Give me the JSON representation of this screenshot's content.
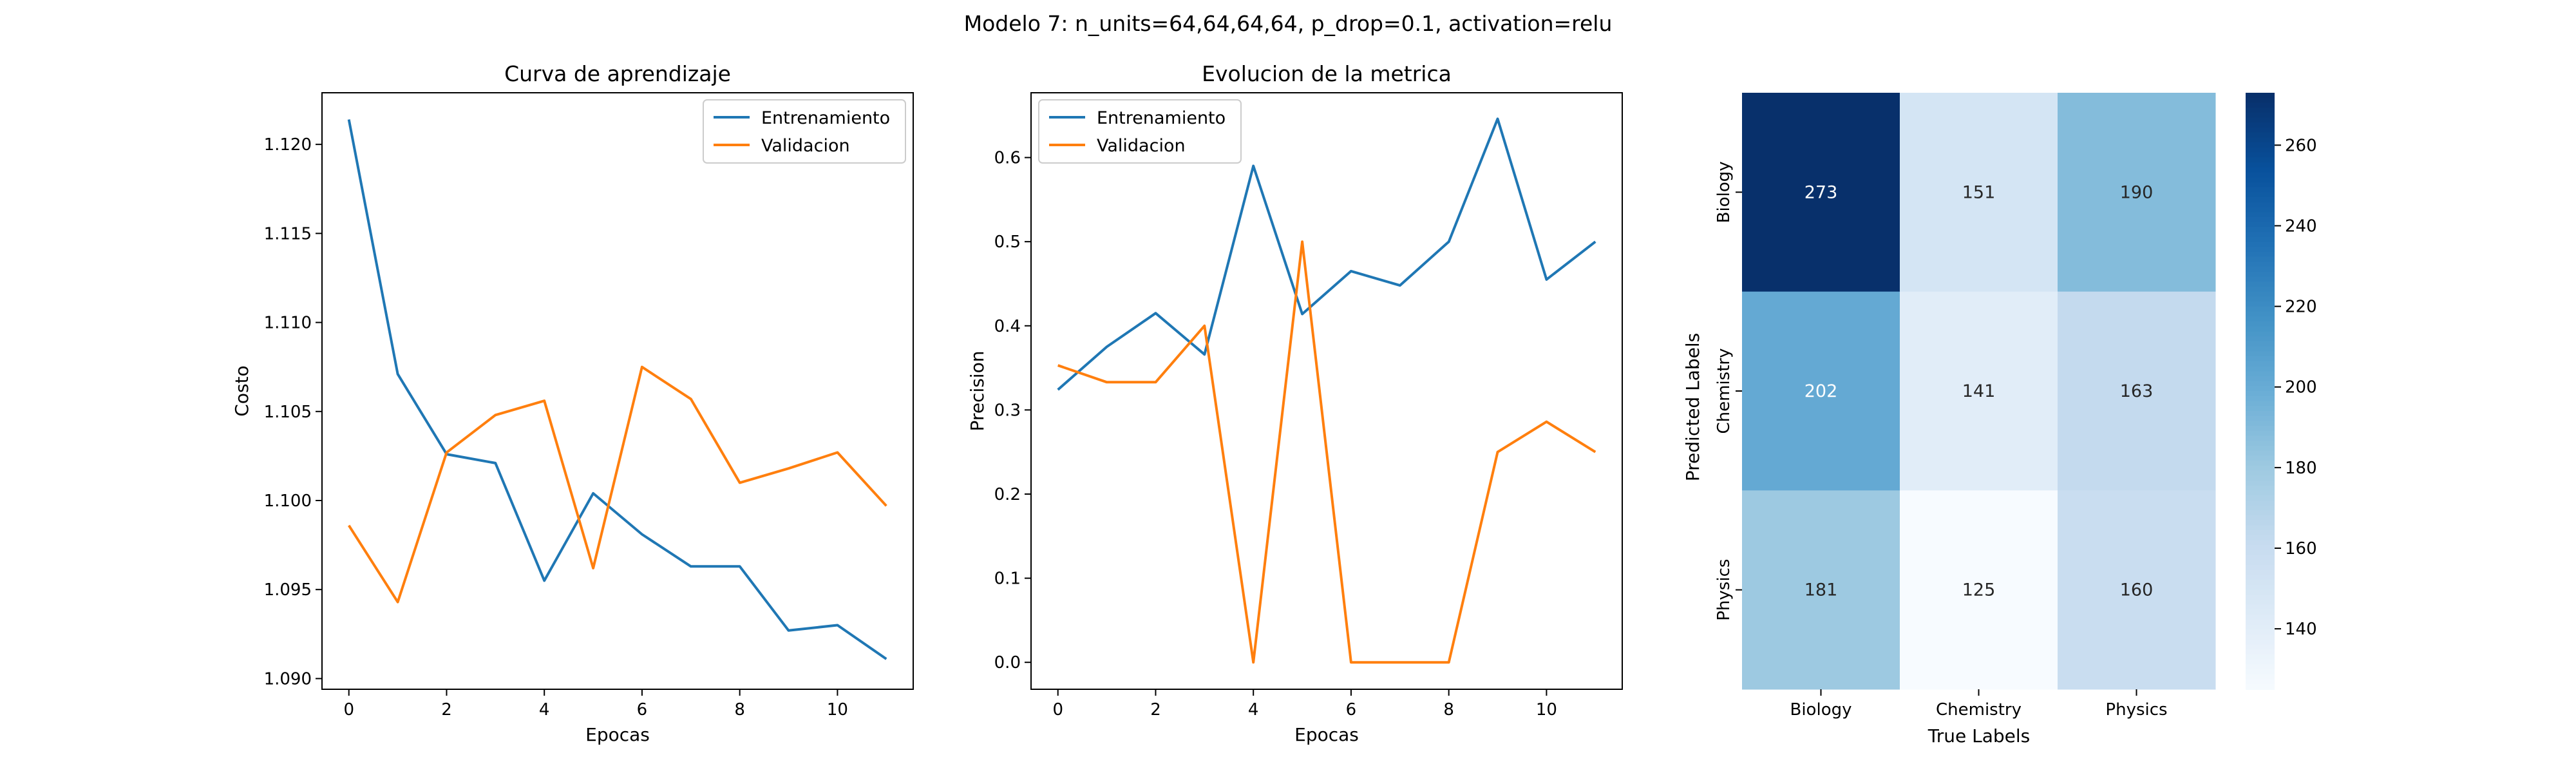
{
  "figure": {
    "suptitle": "Modelo 7: n_units=64,64,64,64, p_drop=0.1, activation=relu"
  },
  "chart_data": [
    {
      "type": "line",
      "title": "Curva de aprendizaje",
      "xlabel": "Epocas",
      "ylabel": "Costo",
      "x": [
        0,
        1,
        2,
        3,
        4,
        5,
        6,
        7,
        8,
        9,
        10,
        11
      ],
      "xticks": [
        "0",
        "2",
        "4",
        "6",
        "8",
        "10"
      ],
      "yticks": [
        "1.090",
        "1.095",
        "1.100",
        "1.105",
        "1.110",
        "1.115",
        "1.120"
      ],
      "xlim": [
        -0.55,
        11.55
      ],
      "ylim": [
        1.0894,
        1.1229
      ],
      "grid": false,
      "legend_position": "upper right",
      "series": [
        {
          "name": "Entrenamiento",
          "color": "#1f77b4",
          "values": [
            1.1214,
            1.1071,
            1.1026,
            1.1021,
            1.0955,
            1.1004,
            1.0981,
            1.0963,
            1.0963,
            1.0927,
            1.093,
            1.0911
          ]
        },
        {
          "name": "Validacion",
          "color": "#ff7f0e",
          "values": [
            1.0986,
            1.0943,
            1.1027,
            1.1048,
            1.1056,
            1.0962,
            1.1075,
            1.1057,
            1.101,
            1.1018,
            1.1027,
            1.0997
          ]
        }
      ]
    },
    {
      "type": "line",
      "title": "Evolucion de la metrica",
      "xlabel": "Epocas",
      "ylabel": "Precision",
      "x": [
        0,
        1,
        2,
        3,
        4,
        5,
        6,
        7,
        8,
        9,
        10,
        11
      ],
      "xticks": [
        "0",
        "2",
        "4",
        "6",
        "8",
        "10"
      ],
      "yticks": [
        "0.0",
        "0.1",
        "0.2",
        "0.3",
        "0.4",
        "0.5",
        "0.6"
      ],
      "xlim": [
        -0.55,
        11.55
      ],
      "ylim": [
        -0.032,
        0.677
      ],
      "grid": false,
      "legend_position": "upper left",
      "series": [
        {
          "name": "Entrenamiento",
          "color": "#1f77b4",
          "values": [
            0.324,
            0.375,
            0.415,
            0.366,
            0.59,
            0.414,
            0.465,
            0.448,
            0.5,
            0.646,
            0.455,
            0.5
          ]
        },
        {
          "name": "Validacion",
          "color": "#ff7f0e",
          "values": [
            0.353,
            0.333,
            0.333,
            0.4,
            0.0,
            0.5,
            0.0,
            0.0,
            0.0,
            0.25,
            0.286,
            0.25
          ]
        }
      ]
    },
    {
      "type": "heatmap",
      "xlabel": "True Labels",
      "ylabel": "Predicted Labels",
      "x_categories": [
        "Biology",
        "Chemistry",
        "Physics"
      ],
      "y_categories": [
        "Biology",
        "Chemistry",
        "Physics"
      ],
      "values": [
        [
          273,
          151,
          190
        ],
        [
          202,
          141,
          163
        ],
        [
          181,
          125,
          160
        ]
      ],
      "colormap": "Blues",
      "vmin": 125,
      "vmax": 273,
      "colorbar_ticks": [
        "140",
        "160",
        "180",
        "200",
        "220",
        "240",
        "260"
      ]
    }
  ]
}
